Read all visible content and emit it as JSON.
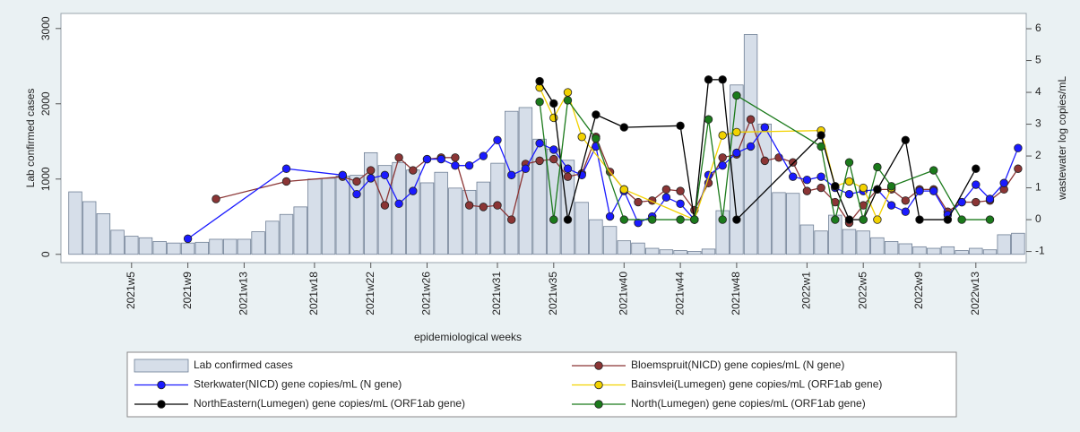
{
  "chart_data": {
    "type": "bar",
    "y_label": "Lab confirmed cases",
    "y2_label": "wastewater log copies/mL",
    "x_label": "epidemiological weeks",
    "categories": [
      null,
      null,
      null,
      null,
      "2021w5",
      null,
      null,
      null,
      "2021w9",
      null,
      null,
      null,
      "2021w13",
      null,
      null,
      null,
      null,
      "2021w18",
      null,
      null,
      null,
      "2021w22",
      null,
      null,
      null,
      "2021w26",
      null,
      null,
      null,
      null,
      "2021w31",
      null,
      null,
      null,
      "2021w35",
      null,
      null,
      null,
      null,
      "2021w40",
      null,
      null,
      null,
      "2021w44",
      null,
      null,
      null,
      "2021w48",
      null,
      null,
      null,
      null,
      "2022w1",
      null,
      null,
      null,
      "2022w5",
      null,
      null,
      null,
      "2022w9",
      null,
      null,
      null,
      "2022w13",
      null,
      null,
      null
    ],
    "ylim": [
      -110,
      3200
    ],
    "yticks": [
      0,
      1000,
      2000,
      3000
    ],
    "y2lim": [
      -1.35,
      6.48
    ],
    "y2ticks": [
      -1,
      0,
      1,
      2,
      3,
      4,
      5,
      6
    ],
    "grid": false,
    "legend": "bottom",
    "series": [
      {
        "name": "Lab confirmed cases",
        "type": "bar",
        "color": "#d6dee9",
        "values": [
          830,
          700,
          540,
          320,
          240,
          220,
          170,
          150,
          150,
          160,
          200,
          200,
          200,
          300,
          440,
          530,
          630,
          1000,
          1010,
          1040,
          1050,
          1350,
          1180,
          1220,
          1120,
          950,
          1090,
          880,
          850,
          960,
          1210,
          1900,
          1950,
          1530,
          1400,
          1250,
          690,
          460,
          370,
          180,
          150,
          80,
          60,
          50,
          40,
          70,
          580,
          2250,
          2920,
          1730,
          820,
          810,
          390,
          310,
          520,
          330,
          310,
          220,
          170,
          140,
          100,
          80,
          100,
          50,
          80,
          60,
          260,
          280
        ]
      },
      {
        "name": "Bloemspruit(NICD) gene copies/mL (N gene)",
        "type": "line",
        "axis": "y2",
        "color": "#8b3535",
        "values": [
          null,
          null,
          null,
          null,
          null,
          null,
          null,
          null,
          null,
          null,
          0.65,
          null,
          null,
          null,
          null,
          1.2,
          null,
          null,
          null,
          1.35,
          1.2,
          1.55,
          0.45,
          1.95,
          1.55,
          1.9,
          1.95,
          1.95,
          0.45,
          0.4,
          0.45,
          0,
          1.75,
          1.85,
          1.9,
          1.35,
          1.45,
          2.6,
          1.5,
          0.95,
          0.55,
          0.6,
          0.95,
          0.9,
          0.3,
          1.15,
          1.95,
          2.05,
          3.15,
          1.85,
          1.95,
          1.8,
          0.9,
          1.0,
          0.55,
          -0.1,
          0.45,
          0.95,
          0.95,
          0.6,
          0.95,
          0.95,
          0.25,
          0.55,
          0.55,
          0.6,
          0.95,
          1.6
        ]
      },
      {
        "name": "Sterkwater(NICD) gene copies/mL (N gene)",
        "type": "line",
        "axis": "y2",
        "color": "#1a1aff",
        "values": [
          null,
          null,
          null,
          null,
          null,
          null,
          null,
          null,
          -0.6,
          null,
          null,
          null,
          null,
          null,
          null,
          1.6,
          null,
          null,
          null,
          1.4,
          0.8,
          1.3,
          1.4,
          0.5,
          0.9,
          1.9,
          1.9,
          1.7,
          1.7,
          2.0,
          2.5,
          1.4,
          1.6,
          2.4,
          2.2,
          1.6,
          1.4,
          2.3,
          0.1,
          0.9,
          -0.1,
          0.1,
          0.7,
          0.5,
          0,
          1.4,
          1.7,
          2.1,
          2.3,
          2.9,
          null,
          1.35,
          1.25,
          1.35,
          1.0,
          0.8,
          0.9,
          0.95,
          0.45,
          0.25,
          0.9,
          0.9,
          0.15,
          0.55,
          1.1,
          0.65,
          1.15,
          2.25
        ]
      },
      {
        "name": "Bainsvlei(Lumegen) gene copies/mL (ORF1ab gene)",
        "type": "line",
        "axis": "y2",
        "color": "#f2d200",
        "values": [
          null,
          null,
          null,
          null,
          null,
          null,
          null,
          null,
          null,
          null,
          null,
          null,
          null,
          null,
          null,
          null,
          null,
          null,
          null,
          null,
          null,
          null,
          null,
          null,
          null,
          null,
          null,
          null,
          null,
          null,
          null,
          null,
          null,
          4.15,
          3.2,
          4.0,
          2.6,
          null,
          null,
          0.95,
          null,
          null,
          null,
          null,
          0,
          null,
          2.65,
          2.75,
          null,
          null,
          null,
          null,
          null,
          2.8,
          1.05,
          1.2,
          1.0,
          0,
          1.0,
          null,
          null,
          null,
          null,
          null,
          null,
          null,
          null,
          null
        ]
      },
      {
        "name": "NorthEastern(Lumegen) gene copies/mL (ORF1ab gene)",
        "type": "line",
        "axis": "y2",
        "color": "#000000",
        "values": [
          null,
          null,
          null,
          null,
          null,
          null,
          null,
          null,
          null,
          null,
          null,
          null,
          null,
          null,
          null,
          null,
          null,
          null,
          null,
          null,
          null,
          null,
          null,
          null,
          null,
          null,
          null,
          null,
          null,
          null,
          null,
          null,
          null,
          4.35,
          3.65,
          0,
          null,
          3.3,
          null,
          2.9,
          null,
          null,
          null,
          2.95,
          0,
          4.4,
          4.4,
          0,
          null,
          null,
          null,
          null,
          null,
          2.65,
          1.05,
          0,
          0,
          0.95,
          null,
          2.5,
          0,
          null,
          0,
          null,
          1.6,
          null,
          null,
          null
        ]
      },
      {
        "name": "North(Lumegen) gene copies/mL (ORF1ab gene)",
        "type": "line",
        "axis": "y2",
        "color": "#1b7a1b",
        "values": [
          null,
          null,
          null,
          null,
          null,
          null,
          null,
          null,
          null,
          null,
          null,
          null,
          null,
          null,
          null,
          null,
          null,
          null,
          null,
          null,
          null,
          null,
          null,
          null,
          null,
          null,
          null,
          null,
          null,
          null,
          null,
          null,
          null,
          3.7,
          0,
          3.75,
          null,
          2.55,
          null,
          0,
          null,
          0,
          null,
          0,
          0,
          3.15,
          0,
          3.9,
          null,
          null,
          null,
          null,
          null,
          2.3,
          0,
          1.8,
          0,
          1.65,
          1.05,
          null,
          null,
          1.55,
          null,
          0,
          null,
          0,
          null,
          null
        ]
      }
    ]
  }
}
